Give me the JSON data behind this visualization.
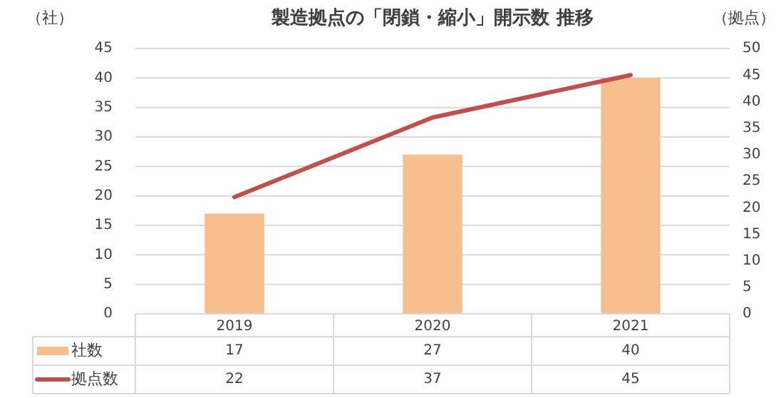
{
  "chart_data": {
    "type": "bar",
    "title": "製造拠点の「閉鎖・縮小」開示数 推移",
    "ylabel": "（社）",
    "y2label": "（拠点）",
    "categories": [
      "2019",
      "2020",
      "2021"
    ],
    "series": [
      {
        "name": "社数",
        "color": "#f8bf8e",
        "values": [
          17,
          27,
          40
        ]
      },
      {
        "name": "拠点数",
        "type": "line",
        "axis": "y2",
        "color": "#c0504d",
        "values": [
          22,
          37,
          45
        ]
      }
    ],
    "ylim": [
      0,
      45
    ],
    "yticks": [
      0,
      5,
      10,
      15,
      20,
      25,
      30,
      35,
      40,
      45
    ],
    "y2lim": [
      0,
      50
    ],
    "y2ticks": [
      0,
      5,
      10,
      15,
      20,
      25,
      30,
      35,
      40,
      45,
      50
    ],
    "grid": "y",
    "legend": "bottom",
    "data_labels": true
  }
}
